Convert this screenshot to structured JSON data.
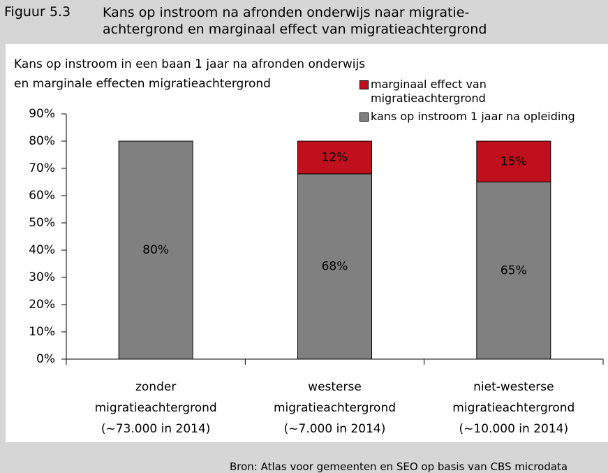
{
  "figure": {
    "number": "Figuur 5.3",
    "caption": "Kans op instroom na afronden onderwijs naar migratie-\nachtergrond en marginaal effect van migratieachtergrond",
    "source": "Bron: Atlas voor gemeenten en SEO op basis van CBS microdata"
  },
  "chart_data": {
    "type": "stacked_bar",
    "title": "Kans op instroom in een baan 1 jaar na afronden onderwijs\nen marginale effecten migratieachtergrond",
    "categories": [
      "zonder\nmigratieachtergrond\n(~73.000 in 2014)",
      "westerse\nmigratieachtergrond\n(~7.000 in 2014)",
      "niet-westerse\nmigratieachtergrond\n(~10.000 in 2014)"
    ],
    "series": [
      {
        "name": "kans op instroom 1 jaar na opleiding",
        "color": "#808080",
        "values": [
          80,
          68,
          65
        ],
        "value_labels": [
          "80%",
          "68%",
          "65%"
        ]
      },
      {
        "name": "marginaal effect van migratieachtergrond",
        "color": "#c0101e",
        "values": [
          null,
          12,
          15
        ],
        "value_labels": [
          null,
          "12%",
          "15%"
        ]
      }
    ],
    "ylim": [
      0,
      90
    ],
    "yticks": [
      {
        "value": 0,
        "label": "0%"
      },
      {
        "value": 10,
        "label": "10%"
      },
      {
        "value": 20,
        "label": "20%"
      },
      {
        "value": 30,
        "label": "30%"
      },
      {
        "value": 40,
        "label": "40%"
      },
      {
        "value": 50,
        "label": "50%"
      },
      {
        "value": 60,
        "label": "60%"
      },
      {
        "value": 70,
        "label": "70%"
      },
      {
        "value": 80,
        "label": "80%"
      },
      {
        "value": 90,
        "label": "90%"
      }
    ],
    "grid": false,
    "legend": "upper right"
  }
}
